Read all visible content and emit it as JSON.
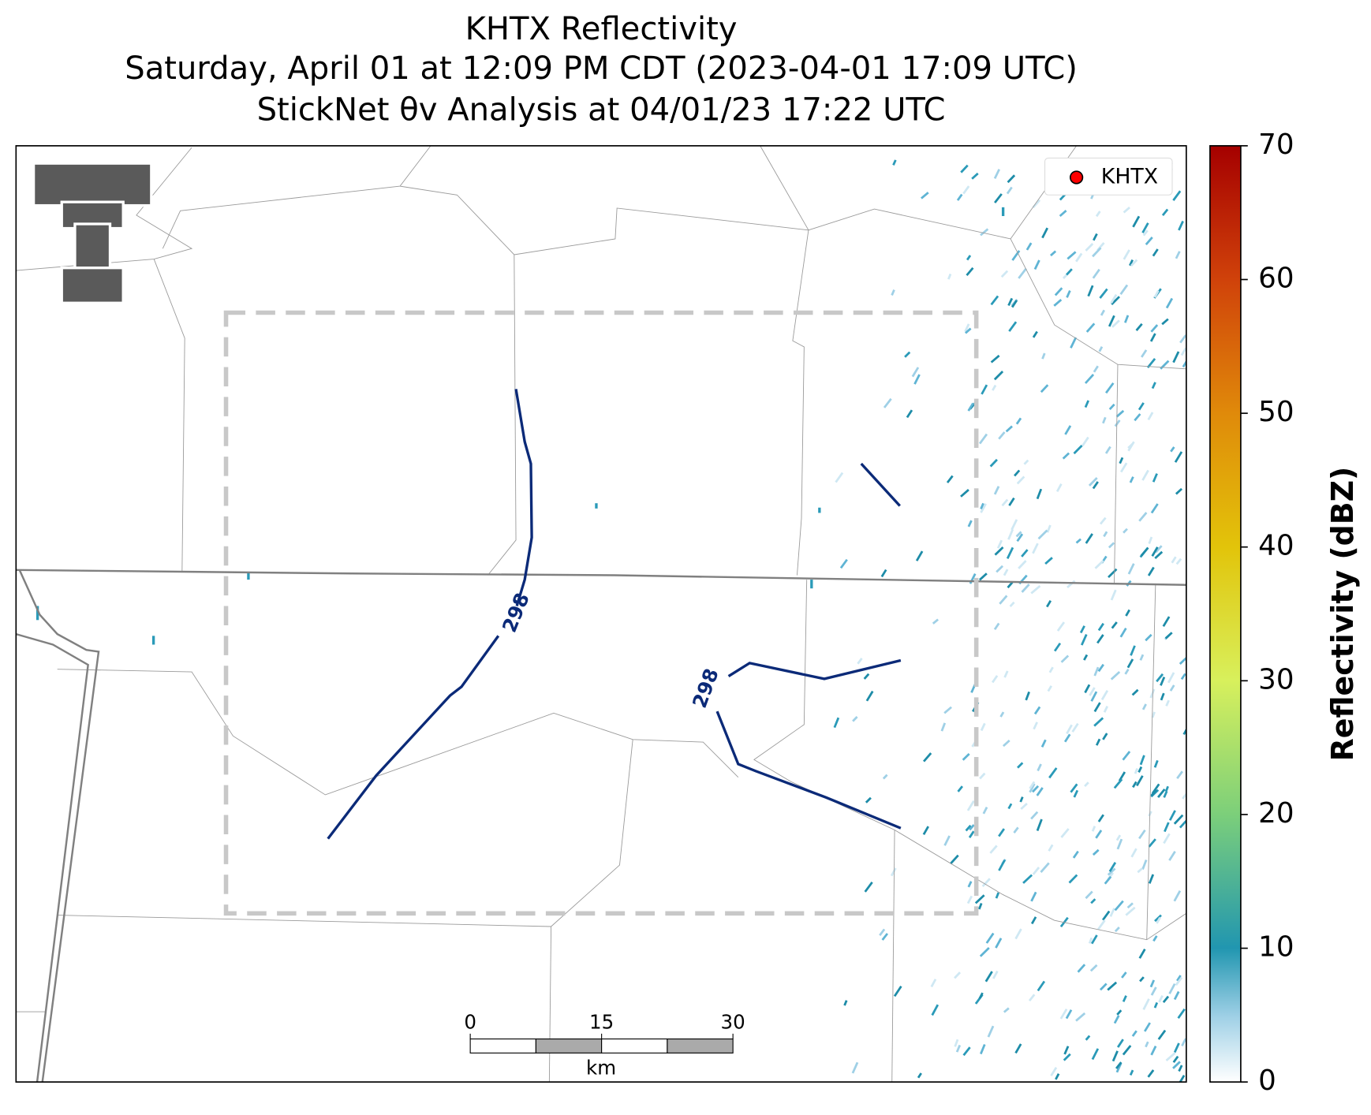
{
  "header": {
    "title_lines": [
      "KHTX Reflectivity",
      "Saturday, April 01 at 12:09 PM CDT (2023-04-01 17:09 UTC)",
      "StickNet θv Analysis at 04/01/23 17:22 UTC"
    ]
  },
  "legend": {
    "label": "KHTX",
    "color": "#ff0000"
  },
  "colorbar": {
    "label": "Reflectivity (dBZ)",
    "lim": [
      0,
      70
    ],
    "ticks": [
      0,
      10,
      20,
      30,
      40,
      50,
      60,
      70
    ]
  },
  "scalebar": {
    "lim": [
      0,
      30
    ],
    "ticks": [
      0,
      15,
      30
    ],
    "unit": "km"
  },
  "contours": [
    {
      "level": 298
    },
    {
      "level": 298
    }
  ]
}
